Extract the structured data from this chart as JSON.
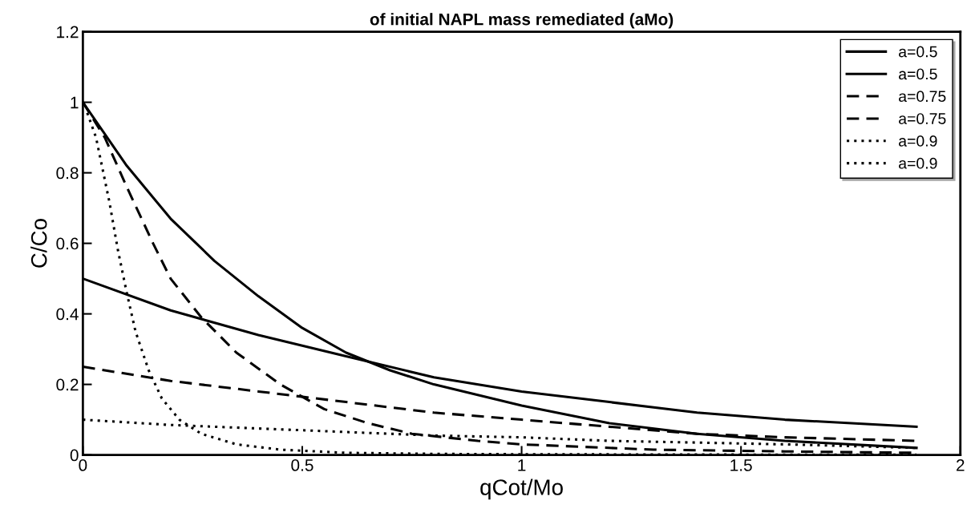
{
  "chart_data": {
    "type": "line",
    "title": "of initial NAPL mass remediated (aMo)",
    "xlabel": "qCot/Mo",
    "ylabel": "C/Co",
    "xlim": [
      0,
      2
    ],
    "ylim": [
      0,
      1.2
    ],
    "xticks": [
      0,
      0.5,
      1,
      1.5,
      2
    ],
    "yticks": [
      0,
      0.2,
      0.4,
      0.6,
      0.8,
      1,
      1.2
    ],
    "grid": false,
    "legend": "top right",
    "marker": "none",
    "series": [
      {
        "name": "a=0.5",
        "color": "#000000",
        "line_style": "solid",
        "x": [
          0,
          0.1,
          0.2,
          0.3,
          0.4,
          0.5,
          0.6,
          0.7,
          0.8,
          1,
          1.2,
          1.4,
          1.6,
          1.9
        ],
        "values": [
          1,
          0.82,
          0.67,
          0.55,
          0.45,
          0.36,
          0.29,
          0.24,
          0.2,
          0.14,
          0.09,
          0.06,
          0.04,
          0.02
        ]
      },
      {
        "name": "a=0.5",
        "color": "#000000",
        "line_style": "solid",
        "x": [
          0,
          0.2,
          0.4,
          0.6,
          0.8,
          1,
          1.2,
          1.4,
          1.6,
          1.9
        ],
        "values": [
          0.5,
          0.41,
          0.34,
          0.28,
          0.22,
          0.18,
          0.15,
          0.12,
          0.1,
          0.08
        ]
      },
      {
        "name": "a=0.75",
        "color": "#000000",
        "line_style": "dashed",
        "x": [
          0,
          0.05,
          0.1,
          0.16,
          0.2,
          0.27,
          0.35,
          0.45,
          0.55,
          0.65,
          0.75,
          0.9,
          1,
          1.3,
          1.6,
          1.9
        ],
        "values": [
          1,
          0.9,
          0.76,
          0.6,
          0.5,
          0.39,
          0.29,
          0.2,
          0.13,
          0.09,
          0.06,
          0.04,
          0.03,
          0.015,
          0.01,
          0.006
        ]
      },
      {
        "name": "a=0.75",
        "color": "#000000",
        "line_style": "dashed",
        "x": [
          0,
          0.2,
          0.4,
          0.6,
          0.8,
          1,
          1.2,
          1.4,
          1.6,
          1.9
        ],
        "values": [
          0.25,
          0.21,
          0.18,
          0.15,
          0.12,
          0.1,
          0.08,
          0.06,
          0.05,
          0.04
        ]
      },
      {
        "name": "a=0.9",
        "color": "#000000",
        "line_style": "dotted",
        "x": [
          0.01,
          0.03,
          0.06,
          0.08,
          0.1,
          0.12,
          0.15,
          0.18,
          0.22,
          0.27,
          0.35,
          0.45,
          0.6,
          0.8,
          1,
          1.5,
          1.9
        ],
        "values": [
          0.97,
          0.9,
          0.72,
          0.58,
          0.46,
          0.35,
          0.24,
          0.16,
          0.1,
          0.06,
          0.03,
          0.015,
          0.006,
          0.003,
          0.002,
          0.001,
          0.001
        ]
      },
      {
        "name": "a=0.9",
        "color": "#000000",
        "line_style": "dotted",
        "x": [
          0,
          0.2,
          0.4,
          0.6,
          0.8,
          1,
          1.2,
          1.4,
          1.6,
          1.9
        ],
        "values": [
          0.1,
          0.085,
          0.075,
          0.065,
          0.055,
          0.05,
          0.04,
          0.035,
          0.03,
          0.02
        ]
      }
    ]
  }
}
